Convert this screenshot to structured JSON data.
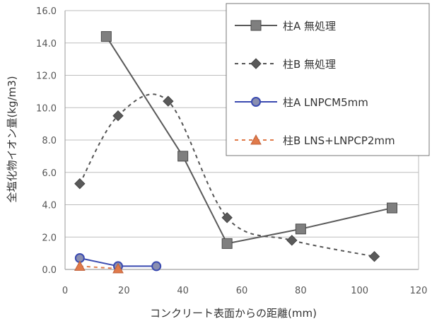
{
  "chart_data": {
    "type": "line",
    "xlabel": "コンクリート表面からの距離(mm)",
    "ylabel": "全塩化物イオン量(kg/m3)",
    "xlim": [
      0,
      120
    ],
    "ylim": [
      0,
      16
    ],
    "xticks": [
      "0",
      "20",
      "40",
      "60",
      "80",
      "100",
      "120"
    ],
    "yticks": [
      "0.0",
      "2.0",
      "4.0",
      "6.0",
      "8.0",
      "10.0",
      "12.0",
      "14.0",
      "16.0"
    ],
    "grid": true,
    "legend_position": "top-right",
    "series": [
      {
        "name": "柱A 無処理",
        "color": "#5a5a5a",
        "marker": "square",
        "line": "solid",
        "smooth": false,
        "x": [
          14,
          40,
          55,
          80,
          111
        ],
        "y": [
          14.4,
          7.0,
          1.6,
          2.5,
          3.8
        ]
      },
      {
        "name": "柱B 無処理",
        "color": "#555555",
        "marker": "diamond",
        "line": "dashed",
        "smooth": true,
        "x": [
          5,
          18,
          35,
          55,
          77,
          105
        ],
        "y": [
          5.3,
          9.5,
          10.4,
          3.2,
          1.8,
          0.8
        ]
      },
      {
        "name": "柱A LNPCM5mm",
        "color": "#3a4ab0",
        "marker": "circle",
        "line": "solid",
        "smooth": false,
        "x": [
          5,
          18,
          31
        ],
        "y": [
          0.7,
          0.2,
          0.2
        ]
      },
      {
        "name": "柱B LNS+LNPCP2mm",
        "color": "#e07a4a",
        "marker": "triangle",
        "line": "dashed",
        "smooth": false,
        "x": [
          5,
          18
        ],
        "y": [
          0.2,
          0.05
        ]
      }
    ]
  }
}
